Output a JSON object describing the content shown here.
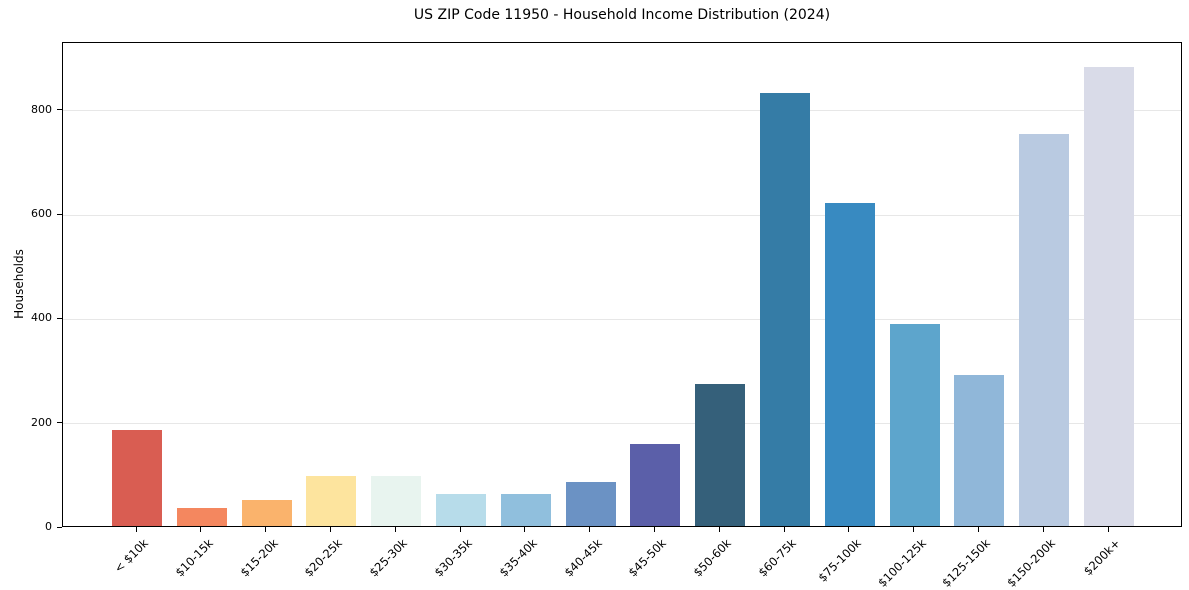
{
  "title": "US ZIP Code 11950 - Household Income Distribution (2024)",
  "chart_data": {
    "type": "bar",
    "title": "US ZIP Code 11950 - Household Income Distribution (2024)",
    "xlabel": "",
    "ylabel": "Households",
    "categories": [
      "< $10k",
      "$10-15k",
      "$15-20k",
      "$20-25k",
      "$25-30k",
      "$30-35k",
      "$35-40k",
      "$40-45k",
      "$45-50k",
      "$50-60k",
      "$60-75k",
      "$75-100k",
      "$100-125k",
      "$125-150k",
      "$150-200k",
      "$200k+"
    ],
    "values": [
      184,
      35,
      50,
      95,
      95,
      62,
      62,
      84,
      157,
      272,
      830,
      620,
      387,
      290,
      752,
      880
    ],
    "bar_colors": [
      "#d95d52",
      "#f4875f",
      "#fab36c",
      "#fde49e",
      "#e8f4ef",
      "#b7dcea",
      "#90bfdd",
      "#6b92c4",
      "#5b5fa9",
      "#35607a",
      "#357ca6",
      "#388ac1",
      "#5da5cc",
      "#90b7d9",
      "#b9cae1",
      "#d9dbe8"
    ],
    "ylim": [
      0,
      930
    ],
    "yticks": [
      0,
      200,
      400,
      600,
      800
    ],
    "grid": "horizontal",
    "legend": "none"
  }
}
